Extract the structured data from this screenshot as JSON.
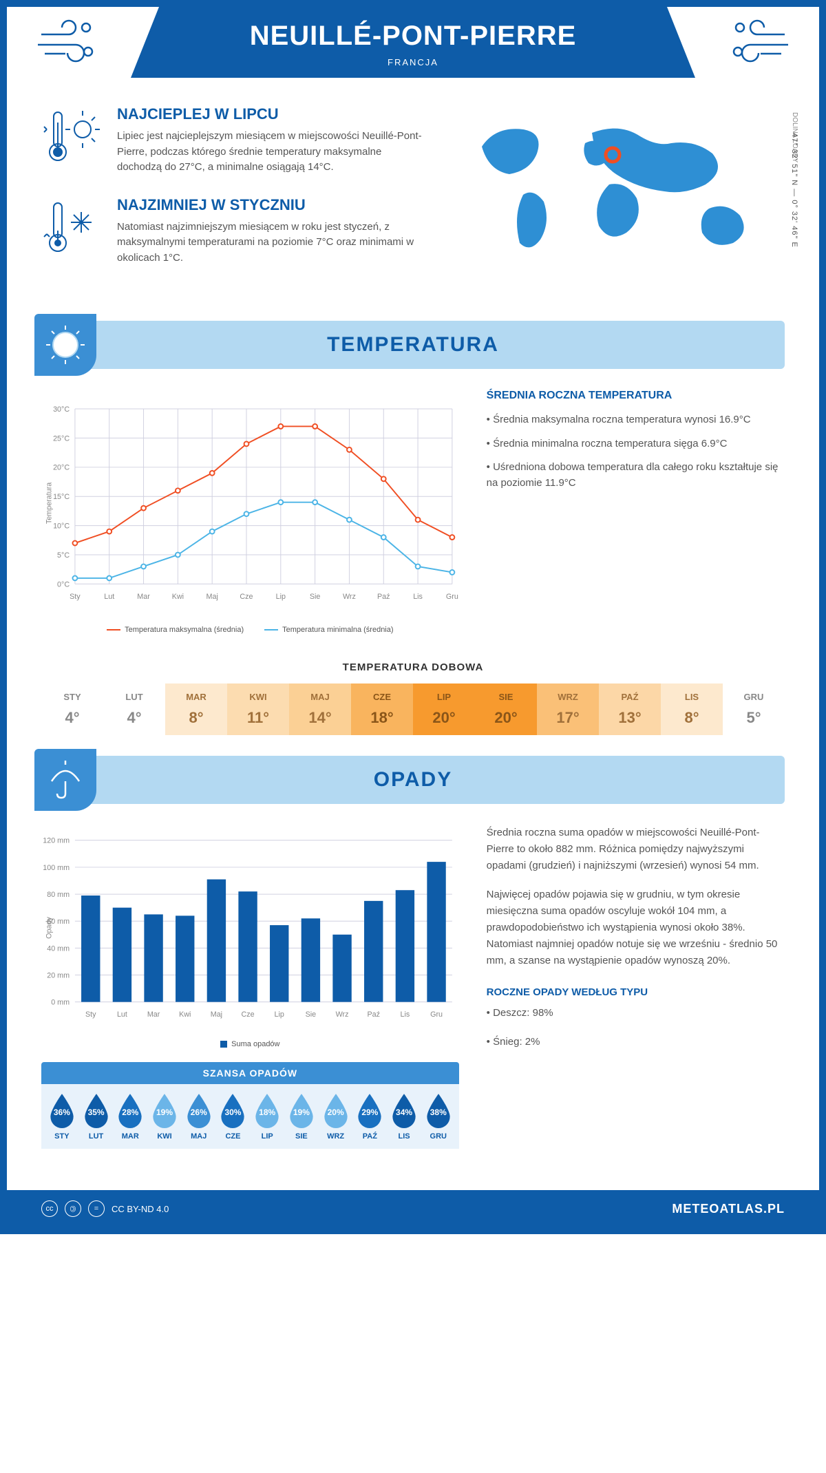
{
  "header": {
    "city": "NEUILLÉ-PONT-PIERRE",
    "country": "FRANCJA",
    "coords": "47° 32' 51\" N — 0° 32' 46\" E",
    "region": "DOLINA LOARY"
  },
  "climate": {
    "hot_title": "NAJCIEPLEJ W LIPCU",
    "hot_text": "Lipiec jest najcieplejszym miesiącem w miejscowości Neuillé-Pont-Pierre, podczas którego średnie temperatury maksymalne dochodzą do 27°C, a minimalne osiągają 14°C.",
    "cold_title": "NAJZIMNIEJ W STYCZNIU",
    "cold_text": "Natomiast najzimniejszym miesiącem w roku jest styczeń, z maksymalnymi temperaturami na poziomie 7°C oraz minimami w okolicach 1°C."
  },
  "temp_section": {
    "title": "TEMPERATURA",
    "avg_title": "ŚREDNIA ROCZNA TEMPERATURA",
    "bullet1": "• Średnia maksymalna roczna temperatura wynosi 16.9°C",
    "bullet2": "• Średnia minimalna roczna temperatura sięga 6.9°C",
    "bullet3": "• Uśredniona dobowa temperatura dla całego roku kształtuje się na poziomie 11.9°C",
    "chart": {
      "type": "line",
      "months": [
        "Sty",
        "Lut",
        "Mar",
        "Kwi",
        "Maj",
        "Cze",
        "Lip",
        "Sie",
        "Wrz",
        "Paź",
        "Lis",
        "Gru"
      ],
      "max_series": [
        7,
        9,
        13,
        16,
        19,
        24,
        27,
        27,
        23,
        18,
        11,
        8
      ],
      "min_series": [
        1,
        1,
        3,
        5,
        9,
        12,
        14,
        14,
        11,
        8,
        3,
        2
      ],
      "max_color": "#f04e23",
      "min_color": "#4bb4e6",
      "grid_color": "#d0d0e0",
      "ylim": [
        0,
        30
      ],
      "ytick_step": 5,
      "ylabel": "Temperatura",
      "legend_max": "Temperatura maksymalna (średnia)",
      "legend_min": "Temperatura minimalna (średnia)"
    },
    "daily_title": "TEMPERATURA DOBOWA",
    "daily": {
      "months": [
        "STY",
        "LUT",
        "MAR",
        "KWI",
        "MAJ",
        "CZE",
        "LIP",
        "SIE",
        "WRZ",
        "PAŹ",
        "LIS",
        "GRU"
      ],
      "values": [
        "4°",
        "4°",
        "8°",
        "11°",
        "14°",
        "18°",
        "20°",
        "20°",
        "17°",
        "13°",
        "8°",
        "5°"
      ],
      "bg_colors": [
        "#ffffff",
        "#ffffff",
        "#fde9ce",
        "#fcdcb0",
        "#fbd095",
        "#f9b45e",
        "#f79a2e",
        "#f79a2e",
        "#fac077",
        "#fcd7a7",
        "#fde9ce",
        "#ffffff"
      ],
      "text_colors": [
        "#888",
        "#888",
        "#a0703a",
        "#a0703a",
        "#a0703a",
        "#8a5518",
        "#8a5518",
        "#8a5518",
        "#a0703a",
        "#a0703a",
        "#a0703a",
        "#888"
      ]
    }
  },
  "precip_section": {
    "title": "OPADY",
    "chart": {
      "type": "bar",
      "months": [
        "Sty",
        "Lut",
        "Mar",
        "Kwi",
        "Maj",
        "Cze",
        "Lip",
        "Sie",
        "Wrz",
        "Paź",
        "Lis",
        "Gru"
      ],
      "values": [
        79,
        70,
        65,
        64,
        91,
        82,
        57,
        62,
        50,
        75,
        83,
        104
      ],
      "bar_color": "#0e5ca8",
      "grid_color": "#d0d0e0",
      "ylim": [
        0,
        120
      ],
      "ytick_step": 20,
      "ylabel": "Opady",
      "legend": "Suma opadów"
    },
    "text1": "Średnia roczna suma opadów w miejscowości Neuillé-Pont-Pierre to około 882 mm. Różnica pomiędzy najwyższymi opadami (grudzień) i najniższymi (wrzesień) wynosi 54 mm.",
    "text2": "Najwięcej opadów pojawia się w grudniu, w tym okresie miesięczna suma opadów oscyluje wokół 104 mm, a prawdopodobieństwo ich wystąpienia wynosi około 38%. Natomiast najmniej opadów notuje się we wrześniu - średnio 50 mm, a szanse na wystąpienie opadów wynoszą 20%.",
    "chance_title": "SZANSA OPADÓW",
    "chance": {
      "months": [
        "STY",
        "LUT",
        "MAR",
        "KWI",
        "MAJ",
        "CZE",
        "LIP",
        "SIE",
        "WRZ",
        "PAŹ",
        "LIS",
        "GRU"
      ],
      "values": [
        "36%",
        "35%",
        "28%",
        "19%",
        "26%",
        "30%",
        "18%",
        "19%",
        "20%",
        "29%",
        "34%",
        "38%"
      ],
      "colors": [
        "#0e5ca8",
        "#0e5ca8",
        "#1970c0",
        "#6bb5e8",
        "#3b8fd4",
        "#1970c0",
        "#6bb5e8",
        "#6bb5e8",
        "#6bb5e8",
        "#1970c0",
        "#0e5ca8",
        "#0e5ca8"
      ]
    },
    "type_title": "ROCZNE OPADY WEDŁUG TYPU",
    "type1": "• Deszcz: 98%",
    "type2": "• Śnieg: 2%"
  },
  "footer": {
    "license": "CC BY-ND 4.0",
    "site": "METEOATLAS.PL"
  }
}
